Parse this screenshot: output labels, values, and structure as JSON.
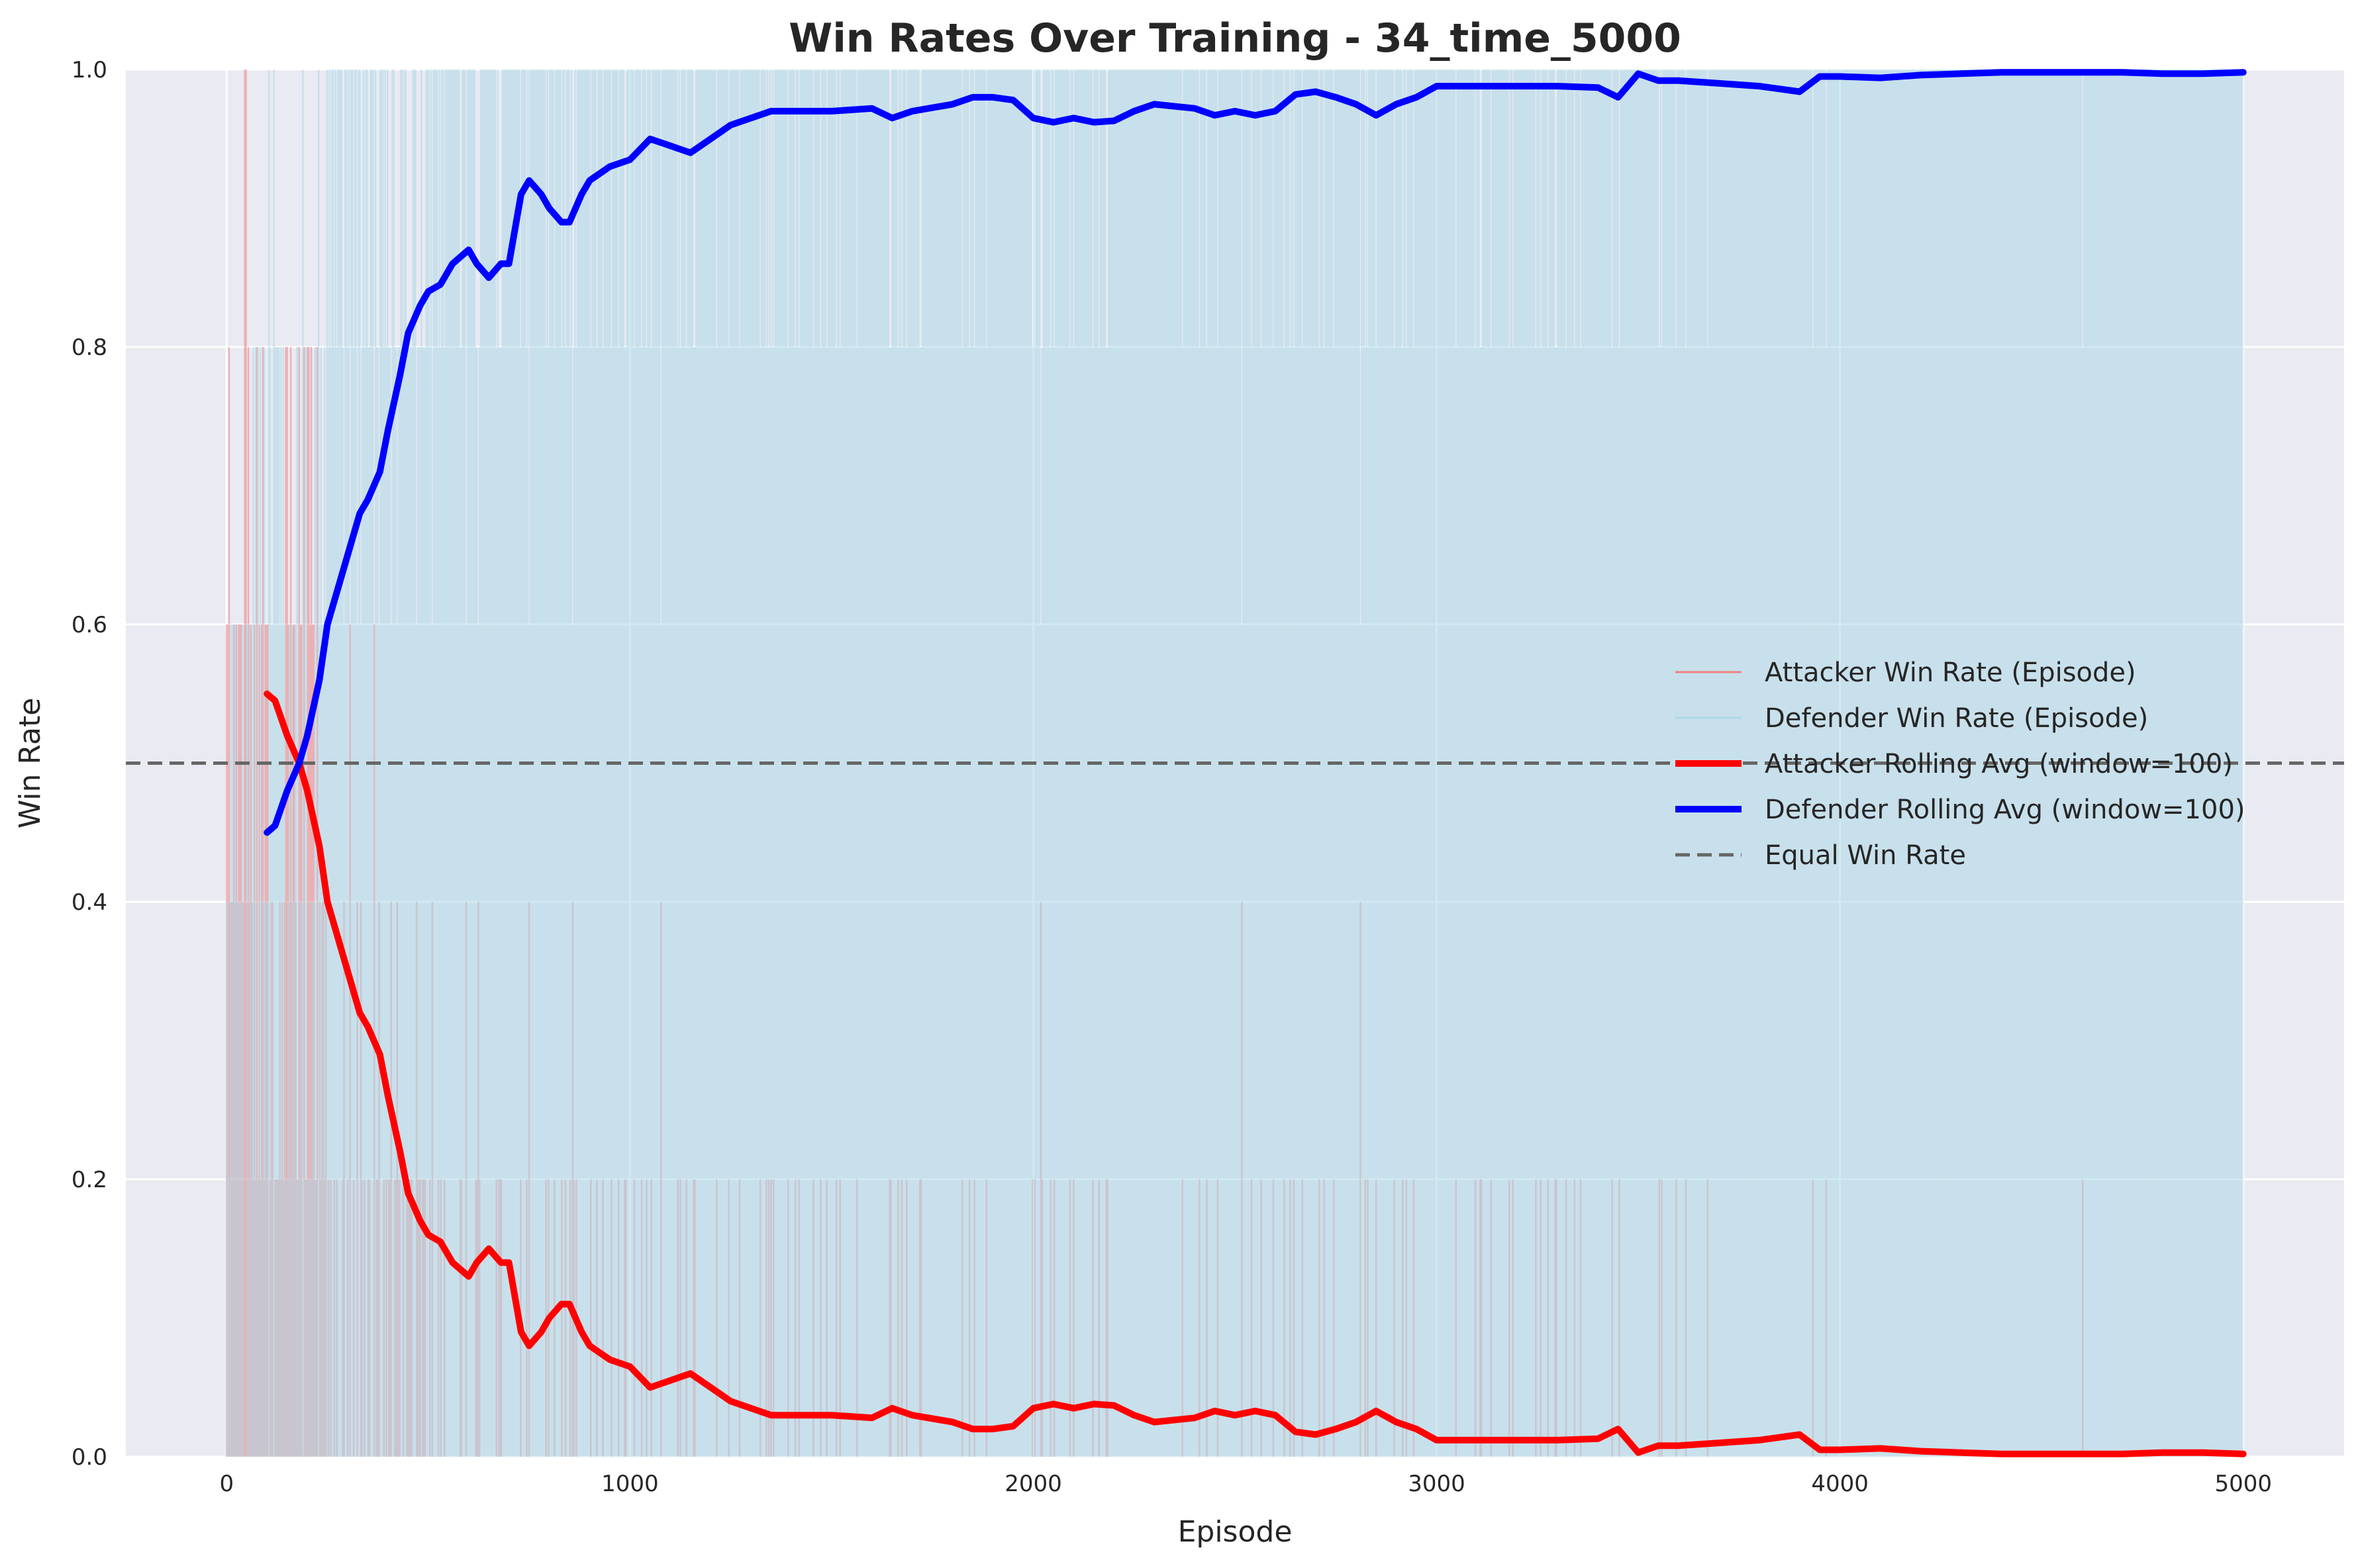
{
  "chart_data": {
    "type": "line",
    "title": "Win Rates Over Training - 34_time_5000",
    "xlabel": "Episode",
    "ylabel": "Win Rate",
    "xlim": [
      -250,
      5250
    ],
    "ylim": [
      0.0,
      1.0
    ],
    "x_ticks": [
      0,
      1000,
      2000,
      3000,
      4000,
      5000
    ],
    "y_ticks": [
      0.0,
      0.2,
      0.4,
      0.6,
      0.8,
      1.0
    ],
    "x_tick_labels": [
      "0",
      "1000",
      "2000",
      "3000",
      "4000",
      "5000"
    ],
    "y_tick_labels": [
      "0.0",
      "0.2",
      "0.4",
      "0.6",
      "0.8",
      "1.0"
    ],
    "grid": true,
    "legend_position": "center-right",
    "reference_line": {
      "name": "Equal Win Rate",
      "y": 0.5,
      "color": "#666666",
      "style": "dashed"
    },
    "series": [
      {
        "name": "Attacker Win Rate (Episode)",
        "kind": "per-episode",
        "color": "#f08080",
        "description_levels": [
          0.0,
          0.2,
          0.4,
          0.6,
          0.8,
          1.0
        ],
        "profile": [
          {
            "until_episode": 100,
            "level_probs": [
              0.0,
              0.1,
              0.25,
              0.3,
              0.25,
              0.1
            ]
          },
          {
            "until_episode": 250,
            "level_probs": [
              0.15,
              0.25,
              0.3,
              0.2,
              0.1,
              0.0
            ]
          },
          {
            "until_episode": 500,
            "level_probs": [
              0.55,
              0.3,
              0.12,
              0.03,
              0.0,
              0.0
            ]
          },
          {
            "until_episode": 1000,
            "level_probs": [
              0.78,
              0.18,
              0.04,
              0.0,
              0.0,
              0.0
            ]
          },
          {
            "until_episode": 2200,
            "level_probs": [
              0.88,
              0.11,
              0.01,
              0.0,
              0.0,
              0.0
            ]
          },
          {
            "until_episode": 3400,
            "level_probs": [
              0.93,
              0.065,
              0.005,
              0.0,
              0.0,
              0.0
            ]
          },
          {
            "until_episode": 4000,
            "level_probs": [
              0.975,
              0.022,
              0.003,
              0.0,
              0.0,
              0.0
            ]
          },
          {
            "until_episode": 5000,
            "level_probs": [
              0.993,
              0.007,
              0.0,
              0.0,
              0.0,
              0.0
            ]
          }
        ]
      },
      {
        "name": "Defender Win Rate (Episode)",
        "kind": "per-episode",
        "color": "#add8e6",
        "complement_of": "Attacker Win Rate (Episode)"
      },
      {
        "name": "Attacker Rolling Avg (window=100)",
        "kind": "rolling",
        "color": "#ff0000",
        "x": [
          100,
          120,
          150,
          180,
          200,
          230,
          250,
          280,
          300,
          330,
          350,
          380,
          400,
          430,
          450,
          480,
          500,
          530,
          560,
          600,
          620,
          650,
          680,
          700,
          730,
          750,
          780,
          800,
          830,
          850,
          880,
          900,
          950,
          1000,
          1050,
          1100,
          1150,
          1200,
          1250,
          1300,
          1350,
          1400,
          1500,
          1600,
          1650,
          1700,
          1800,
          1850,
          1900,
          1950,
          2000,
          2050,
          2100,
          2150,
          2200,
          2250,
          2300,
          2400,
          2450,
          2500,
          2550,
          2600,
          2650,
          2700,
          2750,
          2800,
          2850,
          2900,
          2950,
          3000,
          3100,
          3200,
          3300,
          3400,
          3450,
          3500,
          3550,
          3600,
          3700,
          3800,
          3900,
          3950,
          4000,
          4100,
          4200,
          4300,
          4400,
          4500,
          4600,
          4700,
          4800,
          4900,
          5000
        ],
        "y": [
          0.55,
          0.545,
          0.52,
          0.5,
          0.48,
          0.44,
          0.4,
          0.37,
          0.35,
          0.32,
          0.31,
          0.29,
          0.26,
          0.22,
          0.19,
          0.17,
          0.16,
          0.155,
          0.14,
          0.13,
          0.14,
          0.15,
          0.14,
          0.14,
          0.09,
          0.08,
          0.09,
          0.1,
          0.11,
          0.11,
          0.09,
          0.08,
          0.07,
          0.065,
          0.05,
          0.055,
          0.06,
          0.05,
          0.04,
          0.035,
          0.03,
          0.03,
          0.03,
          0.028,
          0.035,
          0.03,
          0.025,
          0.02,
          0.02,
          0.022,
          0.035,
          0.038,
          0.035,
          0.038,
          0.037,
          0.03,
          0.025,
          0.028,
          0.033,
          0.03,
          0.033,
          0.03,
          0.018,
          0.016,
          0.02,
          0.025,
          0.033,
          0.025,
          0.02,
          0.012,
          0.012,
          0.012,
          0.012,
          0.013,
          0.02,
          0.003,
          0.008,
          0.008,
          0.01,
          0.012,
          0.016,
          0.005,
          0.005,
          0.006,
          0.004,
          0.003,
          0.002,
          0.002,
          0.002,
          0.002,
          0.003,
          0.003,
          0.002
        ]
      },
      {
        "name": "Defender Rolling Avg (window=100)",
        "kind": "rolling",
        "color": "#0000ff",
        "x": [
          100,
          120,
          150,
          180,
          200,
          230,
          250,
          280,
          300,
          330,
          350,
          380,
          400,
          430,
          450,
          480,
          500,
          530,
          560,
          600,
          620,
          650,
          680,
          700,
          730,
          750,
          780,
          800,
          830,
          850,
          880,
          900,
          950,
          1000,
          1050,
          1100,
          1150,
          1200,
          1250,
          1300,
          1350,
          1400,
          1500,
          1600,
          1650,
          1700,
          1800,
          1850,
          1900,
          1950,
          2000,
          2050,
          2100,
          2150,
          2200,
          2250,
          2300,
          2400,
          2450,
          2500,
          2550,
          2600,
          2650,
          2700,
          2750,
          2800,
          2850,
          2900,
          2950,
          3000,
          3100,
          3200,
          3300,
          3400,
          3450,
          3500,
          3550,
          3600,
          3700,
          3800,
          3900,
          3950,
          4000,
          4100,
          4200,
          4300,
          4400,
          4500,
          4600,
          4700,
          4800,
          4900,
          5000
        ],
        "y": [
          0.45,
          0.455,
          0.48,
          0.5,
          0.52,
          0.56,
          0.6,
          0.63,
          0.65,
          0.68,
          0.69,
          0.71,
          0.74,
          0.78,
          0.81,
          0.83,
          0.84,
          0.845,
          0.86,
          0.87,
          0.86,
          0.85,
          0.86,
          0.86,
          0.91,
          0.92,
          0.91,
          0.9,
          0.89,
          0.89,
          0.91,
          0.92,
          0.93,
          0.935,
          0.95,
          0.945,
          0.94,
          0.95,
          0.96,
          0.965,
          0.97,
          0.97,
          0.97,
          0.972,
          0.965,
          0.97,
          0.975,
          0.98,
          0.98,
          0.978,
          0.965,
          0.962,
          0.965,
          0.962,
          0.963,
          0.97,
          0.975,
          0.972,
          0.967,
          0.97,
          0.967,
          0.97,
          0.982,
          0.984,
          0.98,
          0.975,
          0.967,
          0.975,
          0.98,
          0.988,
          0.988,
          0.988,
          0.988,
          0.987,
          0.98,
          0.997,
          0.992,
          0.992,
          0.99,
          0.988,
          0.984,
          0.995,
          0.995,
          0.994,
          0.996,
          0.997,
          0.998,
          0.998,
          0.998,
          0.998,
          0.997,
          0.997,
          0.998
        ]
      }
    ],
    "legend": [
      {
        "label": "Attacker Win Rate (Episode)",
        "color": "#f08080",
        "style": "thin"
      },
      {
        "label": "Defender Win Rate (Episode)",
        "color": "#add8e6",
        "style": "thin"
      },
      {
        "label": "Attacker Rolling Avg (window=100)",
        "color": "#ff0000",
        "style": "thick"
      },
      {
        "label": "Defender Rolling Avg (window=100)",
        "color": "#0000ff",
        "style": "thick"
      },
      {
        "label": "Equal Win Rate",
        "color": "#666666",
        "style": "dashed"
      }
    ],
    "colors": {
      "plot_background": "#eaeaf2",
      "grid": "#ffffff",
      "text": "#262626"
    }
  }
}
